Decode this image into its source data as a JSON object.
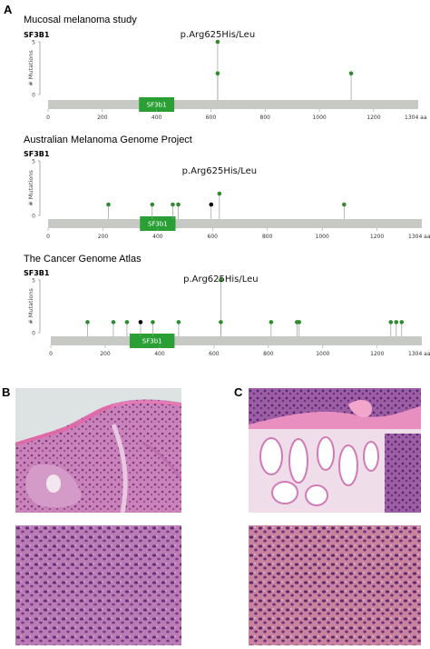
{
  "figure": {
    "panels": {
      "a": "A",
      "b": "B",
      "c": "C"
    }
  },
  "chart_data": [
    {
      "type": "lollipop",
      "title": "Mucosal melanoma study",
      "gene": "SF3B1",
      "ylabel": "# Mutations",
      "ymax": 5,
      "yticks": [
        "0",
        "5"
      ],
      "protein_length": 1304,
      "length_label": "1304 aa",
      "xticks": [
        "0",
        "200",
        "400",
        "600",
        "800",
        "1000",
        "1200"
      ],
      "domain_label": "SF3b1",
      "domain_start": 335,
      "domain_end": 465,
      "hotspot_label": "p.Arg625His/Leu",
      "points": [
        {
          "x": 625,
          "count": 5,
          "type": "missense"
        },
        {
          "x": 625,
          "count": 2,
          "type": "missense"
        },
        {
          "x": 1117,
          "count": 2,
          "type": "missense"
        }
      ]
    },
    {
      "type": "lollipop",
      "title": "Australian Melanoma Genome Project",
      "gene": "SF3B1",
      "ylabel": "# Mutations",
      "ymax": 5,
      "yticks": [
        "0",
        "5"
      ],
      "protein_length": 1304,
      "length_label": "1304 aa",
      "xticks": [
        "0",
        "200",
        "400",
        "600",
        "800",
        "1000",
        "1200"
      ],
      "domain_label": "SF3b1",
      "domain_start": 335,
      "domain_end": 465,
      "hotspot_label": "p.Arg625His/Leu",
      "points": [
        {
          "x": 220,
          "count": 1,
          "type": "missense"
        },
        {
          "x": 380,
          "count": 1,
          "type": "missense"
        },
        {
          "x": 455,
          "count": 1,
          "type": "missense"
        },
        {
          "x": 475,
          "count": 1,
          "type": "missense"
        },
        {
          "x": 595,
          "count": 1,
          "type": "truncating"
        },
        {
          "x": 625,
          "count": 2,
          "type": "missense"
        },
        {
          "x": 1080,
          "count": 1,
          "type": "missense"
        }
      ]
    },
    {
      "type": "lollipop",
      "title": "The Cancer Genome Atlas",
      "gene": "SF3B1",
      "ylabel": "# Mutations",
      "ymax": 5,
      "yticks": [
        "0",
        "5"
      ],
      "protein_length": 1304,
      "length_label": "1304 aa",
      "xticks": [
        "0",
        "200",
        "400",
        "600",
        "800",
        "1000",
        "1200"
      ],
      "domain_label": "SF3b1",
      "domain_start": 290,
      "domain_end": 455,
      "hotspot_label": "p.Arg625His/Leu",
      "points": [
        {
          "x": 135,
          "count": 1,
          "type": "missense"
        },
        {
          "x": 230,
          "count": 1,
          "type": "missense"
        },
        {
          "x": 280,
          "count": 1,
          "type": "missense"
        },
        {
          "x": 330,
          "count": 1,
          "type": "truncating"
        },
        {
          "x": 375,
          "count": 1,
          "type": "missense"
        },
        {
          "x": 470,
          "count": 1,
          "type": "missense"
        },
        {
          "x": 625,
          "count": 5,
          "type": "missense"
        },
        {
          "x": 625,
          "count": 1,
          "type": "missense"
        },
        {
          "x": 810,
          "count": 1,
          "type": "missense"
        },
        {
          "x": 905,
          "count": 1,
          "type": "missense"
        },
        {
          "x": 913,
          "count": 1,
          "type": "missense"
        },
        {
          "x": 1250,
          "count": 1,
          "type": "missense"
        },
        {
          "x": 1270,
          "count": 1,
          "type": "missense"
        },
        {
          "x": 1290,
          "count": 1,
          "type": "missense"
        }
      ]
    }
  ],
  "colors": {
    "missense": "#2e8b2e",
    "truncating": "#000000",
    "domain": "#2aa034",
    "protein_bar": "#c6c9c4",
    "stem": "#9a9a9a"
  }
}
